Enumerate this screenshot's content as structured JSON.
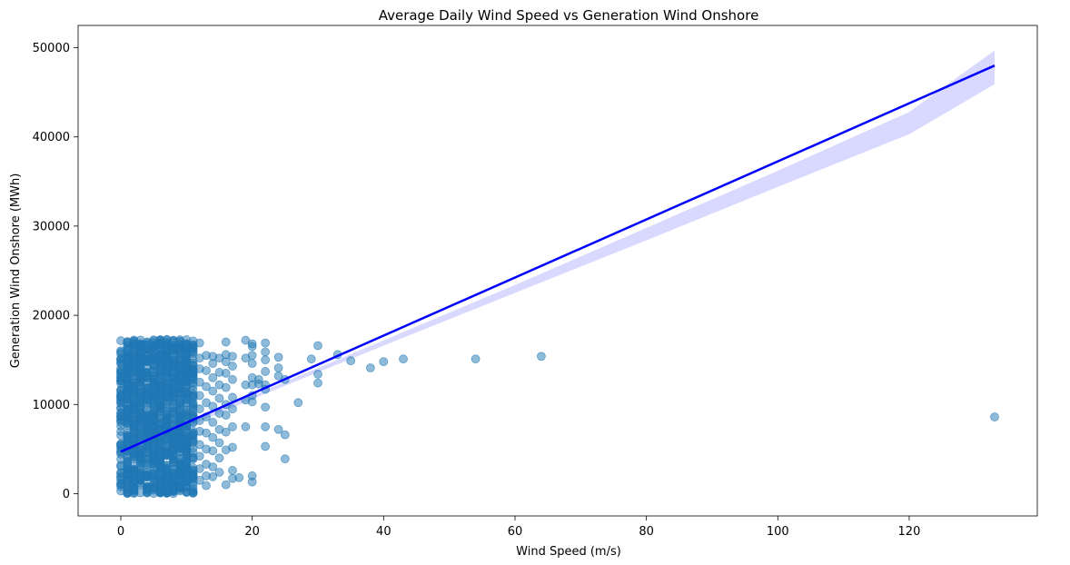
{
  "chart_data": {
    "type": "scatter",
    "title": "Average Daily Wind Speed vs Generation Wind Onshore",
    "xlabel": "Wind Speed (m/s)",
    "ylabel": "Generation Wind Onshore (MWh)",
    "xlim": [
      -6.5,
      139.5
    ],
    "ylim": [
      -2500,
      52500
    ],
    "xticks": [
      0,
      20,
      40,
      60,
      80,
      100,
      120
    ],
    "yticks": [
      0,
      10000,
      20000,
      30000,
      40000,
      50000
    ],
    "grid": false,
    "legend": "none",
    "point_color": "#1f77b4",
    "point_opacity": 0.5,
    "dense_cluster": {
      "x_range": [
        0,
        11
      ],
      "y_range": [
        0,
        17300
      ],
      "description_points_count": 1400
    },
    "points": [
      [
        12,
        16900
      ],
      [
        12,
        15200
      ],
      [
        12,
        14000
      ],
      [
        12,
        12500
      ],
      [
        12,
        11000
      ],
      [
        12,
        9500
      ],
      [
        12,
        8200
      ],
      [
        12,
        7000
      ],
      [
        12,
        5500
      ],
      [
        12,
        4200
      ],
      [
        12,
        2800
      ],
      [
        12,
        1500
      ],
      [
        13,
        15500
      ],
      [
        13,
        13800
      ],
      [
        13,
        12000
      ],
      [
        13,
        10200
      ],
      [
        13,
        8600
      ],
      [
        13,
        6800
      ],
      [
        13,
        5000
      ],
      [
        13,
        3300
      ],
      [
        13,
        2000
      ],
      [
        13,
        900
      ],
      [
        14,
        15400
      ],
      [
        14,
        14600
      ],
      [
        14,
        13000
      ],
      [
        14,
        11500
      ],
      [
        14,
        9800
      ],
      [
        14,
        8000
      ],
      [
        14,
        6300
      ],
      [
        14,
        4800
      ],
      [
        14,
        3000
      ],
      [
        14,
        1900
      ],
      [
        15,
        15200
      ],
      [
        15,
        13600
      ],
      [
        15,
        12200
      ],
      [
        15,
        10700
      ],
      [
        15,
        9000
      ],
      [
        15,
        7200
      ],
      [
        15,
        5700
      ],
      [
        15,
        4000
      ],
      [
        15,
        2400
      ],
      [
        16,
        17000
      ],
      [
        16,
        15600
      ],
      [
        16,
        14800
      ],
      [
        16,
        13500
      ],
      [
        16,
        11900
      ],
      [
        16,
        10000
      ],
      [
        16,
        8800
      ],
      [
        16,
        6900
      ],
      [
        16,
        4900
      ],
      [
        16,
        1000
      ],
      [
        17,
        15400
      ],
      [
        17,
        14300
      ],
      [
        17,
        12800
      ],
      [
        17,
        10800
      ],
      [
        17,
        9500
      ],
      [
        17,
        7500
      ],
      [
        17,
        5200
      ],
      [
        17,
        2600
      ],
      [
        17,
        1700
      ],
      [
        18,
        1800
      ],
      [
        19,
        17200
      ],
      [
        19,
        15200
      ],
      [
        19,
        12200
      ],
      [
        19,
        10500
      ],
      [
        19,
        7500
      ],
      [
        20,
        16800
      ],
      [
        20,
        16500
      ],
      [
        20,
        15500
      ],
      [
        20,
        14600
      ],
      [
        20,
        13000
      ],
      [
        20,
        12200
      ],
      [
        20,
        11000
      ],
      [
        20,
        10300
      ],
      [
        20,
        2000
      ],
      [
        20,
        1300
      ],
      [
        21,
        12800
      ],
      [
        21,
        12300
      ],
      [
        22,
        16900
      ],
      [
        22,
        15900
      ],
      [
        22,
        15000
      ],
      [
        22,
        13700
      ],
      [
        22,
        12200
      ],
      [
        22,
        11700
      ],
      [
        22,
        9700
      ],
      [
        22,
        7500
      ],
      [
        22,
        5300
      ],
      [
        24,
        15300
      ],
      [
        24,
        14100
      ],
      [
        24,
        13200
      ],
      [
        24,
        7200
      ],
      [
        25,
        12800
      ],
      [
        25,
        6600
      ],
      [
        25,
        3900
      ],
      [
        27,
        10200
      ],
      [
        29,
        15100
      ],
      [
        30,
        16600
      ],
      [
        30,
        13400
      ],
      [
        30,
        12400
      ],
      [
        33,
        15600
      ],
      [
        35,
        14900
      ],
      [
        38,
        14100
      ],
      [
        40,
        14800
      ],
      [
        43,
        15100
      ],
      [
        54,
        15100
      ],
      [
        64,
        15400
      ],
      [
        133,
        8600
      ]
    ],
    "regression_line": {
      "color": "#0000ff",
      "x": [
        0,
        133
      ],
      "y": [
        4700,
        48000
      ],
      "ci_color": "#0000ff",
      "ci_opacity": 0.15,
      "ci_x": [
        0,
        20,
        40,
        60,
        80,
        100,
        120,
        133
      ],
      "ci_lower": [
        4300,
        10600,
        16600,
        22500,
        28400,
        34400,
        40300,
        45900
      ],
      "ci_upper": [
        5100,
        11000,
        17200,
        23400,
        29800,
        36200,
        42800,
        49700
      ]
    }
  }
}
